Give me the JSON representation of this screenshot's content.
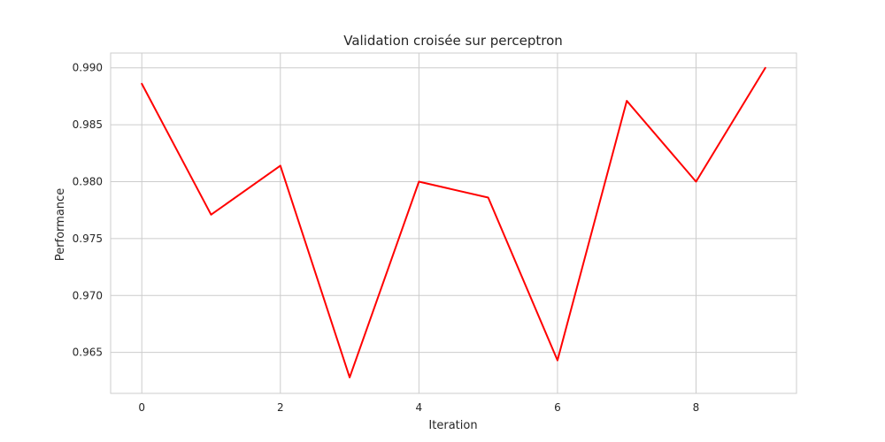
{
  "chart_data": {
    "type": "line",
    "title": "Validation croisée sur perceptron",
    "xlabel": "Iteration",
    "ylabel": "Performance",
    "x": [
      0,
      1,
      2,
      3,
      4,
      5,
      6,
      7,
      8,
      9
    ],
    "series": [
      {
        "values": [
          0.9886,
          0.9771,
          0.9814,
          0.9628,
          0.98,
          0.9786,
          0.9643,
          0.9871,
          0.98,
          0.99
        ],
        "color": "#ff0000"
      }
    ],
    "xlim": [
      -0.45,
      9.45
    ],
    "ylim": [
      0.9614,
      0.9913
    ],
    "xticks": [
      0,
      2,
      4,
      6,
      8
    ],
    "xtick_labels": [
      "0",
      "2",
      "4",
      "6",
      "8"
    ],
    "yticks": [
      0.965,
      0.97,
      0.975,
      0.98,
      0.985,
      0.99
    ],
    "ytick_labels": [
      "0.965",
      "0.970",
      "0.975",
      "0.980",
      "0.985",
      "0.990"
    ],
    "grid": true,
    "legend": false
  }
}
